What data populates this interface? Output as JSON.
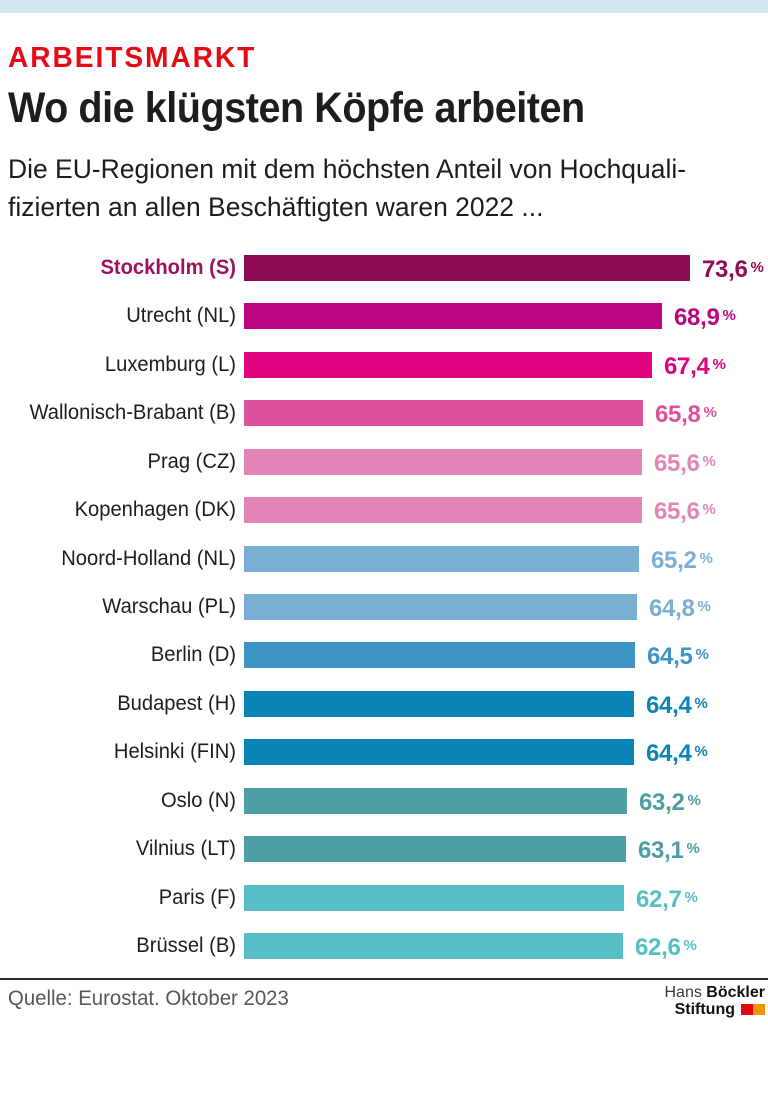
{
  "colors": {
    "topband": "#d3e6f0",
    "kicker": "#e60a14",
    "rule": "#2e2e2e",
    "source_text": "#575757",
    "logo_red": "#e30613",
    "logo_orange": "#f29400"
  },
  "header": {
    "kicker": "ARBEITSMARKT",
    "title": "Wo die klügsten Köpfe arbeiten",
    "subtitle_line1": "Die EU-Regionen mit dem höchsten Anteil von Hochquali-",
    "subtitle_line2": "fizierten an allen Beschäftigten waren 2022 ..."
  },
  "chart_data": {
    "type": "bar",
    "orientation": "horizontal",
    "title": "Wo die klügsten Köpfe arbeiten",
    "subtitle": "Die EU-Regionen mit dem höchsten Anteil von Hochqualifizierten an allen Beschäftigten waren 2022 ...",
    "unit": "%",
    "grid": false,
    "legend": false,
    "xlim": [
      0,
      75
    ],
    "categories": [
      "Stockholm (S)",
      "Utrecht (NL)",
      "Luxemburg (L)",
      "Wallonisch-Brabant (B)",
      "Prag (CZ)",
      "Kopenhagen (DK)",
      "Noord-Holland (NL)",
      "Warschau (PL)",
      "Berlin (D)",
      "Budapest (H)",
      "Helsinki (FIN)",
      "Oslo (N)",
      "Vilnius (LT)",
      "Paris (F)",
      "Brüssel (B)"
    ],
    "values": [
      73.6,
      68.9,
      67.4,
      65.8,
      65.6,
      65.6,
      65.2,
      64.8,
      64.5,
      64.4,
      64.4,
      63.2,
      63.1,
      62.7,
      62.6
    ],
    "value_labels": [
      "73,6",
      "68,9",
      "67,4",
      "65,8",
      "65,6",
      "65,6",
      "65,2",
      "64,8",
      "64,5",
      "64,4",
      "64,4",
      "63,2",
      "63,1",
      "62,7",
      "62,6"
    ],
    "bar_colors": [
      "#8e0c55",
      "#bc0580",
      "#e0017f",
      "#dd519c",
      "#e384b7",
      "#e384b7",
      "#7aafd4",
      "#7aafd4",
      "#3e95c5",
      "#0a84b5",
      "#0a84b5",
      "#4d9fa6",
      "#4d9fa6",
      "#57bec6",
      "#57bec6"
    ],
    "label_colors": [
      "#9e1161",
      "#1d1d1b",
      "#1d1d1b",
      "#1d1d1b",
      "#1d1d1b",
      "#1d1d1b",
      "#1d1d1b",
      "#1d1d1b",
      "#1d1d1b",
      "#1d1d1b",
      "#1d1d1b",
      "#1d1d1b",
      "#1d1d1b",
      "#1d1d1b",
      "#1d1d1b"
    ],
    "label_bold": [
      true,
      false,
      false,
      false,
      false,
      false,
      false,
      false,
      false,
      false,
      false,
      false,
      false,
      false,
      false
    ]
  },
  "footer": {
    "source": "Quelle: Eurostat. Oktober 2023",
    "logo": {
      "line1_regular": "Hans",
      "line1_bold": "Böckler",
      "line2_bold": "Stiftung"
    }
  }
}
